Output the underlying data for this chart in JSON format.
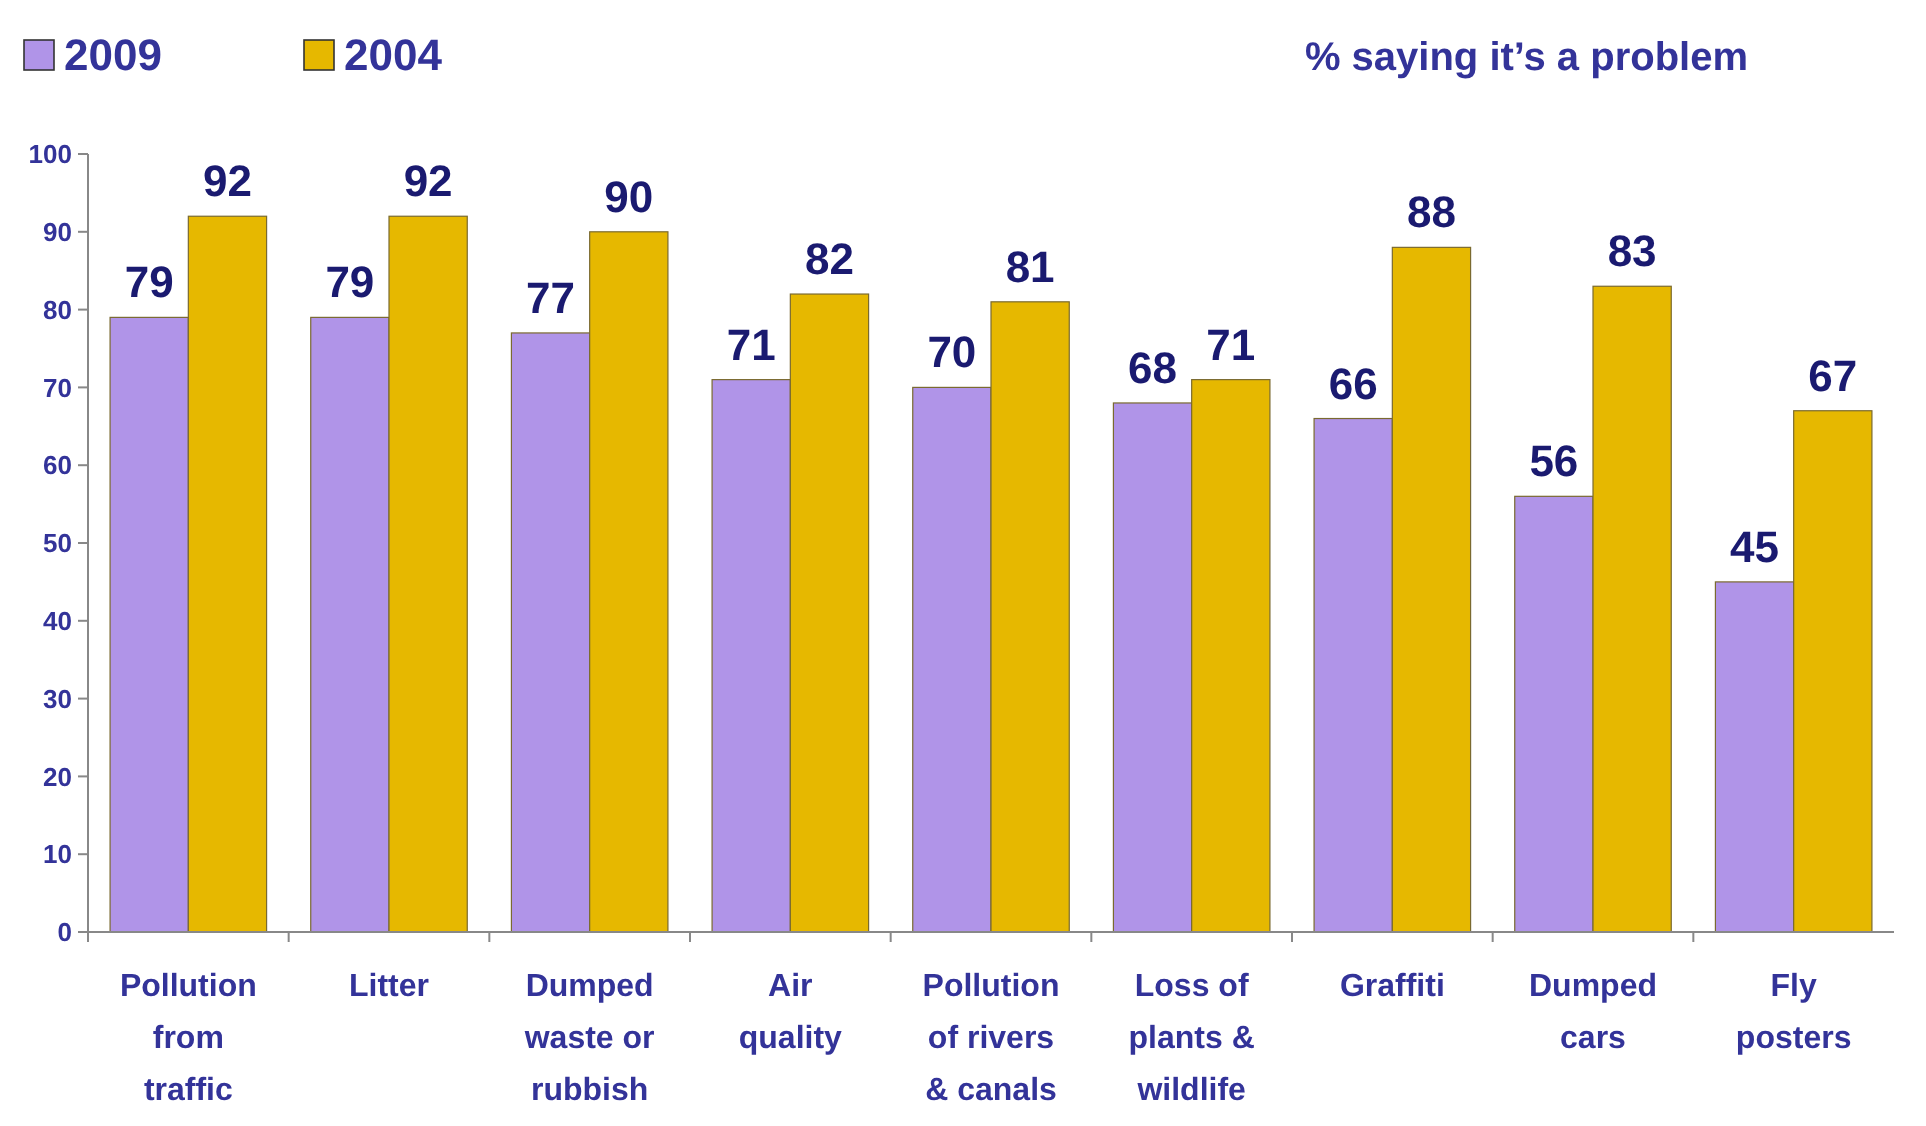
{
  "chart_data": {
    "type": "bar",
    "title": "% saying it’s a problem",
    "categories": [
      "Pollution from traffic",
      "Litter",
      "Dumped waste or rubbish",
      "Air quality",
      "Pollution of rivers & canals",
      "Loss of plants & wildlife",
      "Graffiti",
      "Dumped cars",
      "Fly posters"
    ],
    "series": [
      {
        "name": "2009",
        "color": "#b094e8",
        "values": [
          79,
          79,
          77,
          71,
          70,
          68,
          66,
          56,
          45
        ]
      },
      {
        "name": "2004",
        "color": "#e6b800",
        "values": [
          92,
          92,
          90,
          82,
          81,
          71,
          88,
          83,
          67
        ]
      }
    ],
    "ylim": [
      0,
      100
    ],
    "yticks": [
      0,
      10,
      20,
      30,
      40,
      50,
      60,
      70,
      80,
      90,
      100
    ],
    "grid": false,
    "legend": "top left",
    "data_labels": true
  }
}
